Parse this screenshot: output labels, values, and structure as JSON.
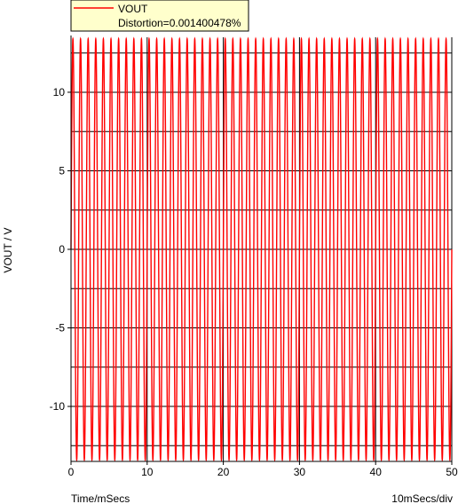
{
  "chart_data": {
    "type": "line",
    "ylabel": "VOUT / V",
    "xlabel": "Time/mSecs",
    "x_scale_note": "10mSecs/div",
    "xlim": [
      0,
      50
    ],
    "ylim": [
      -13.5,
      13.5
    ],
    "x_ticks": [
      0,
      10,
      20,
      30,
      40,
      50
    ],
    "y_ticks": [
      -10,
      -5,
      0,
      5,
      10
    ],
    "x_gridlines": [
      0,
      10,
      20,
      30,
      40,
      50
    ],
    "y_gridlines": [
      -12.5,
      -10,
      -7.5,
      -5,
      -2.5,
      0,
      2.5,
      5,
      7.5,
      10,
      12.5
    ],
    "grid": true,
    "legend": {
      "placement": "top-left",
      "entries": [
        {
          "name": "VOUT",
          "note": "Distortion=0.001400478%"
        }
      ]
    },
    "series": [
      {
        "name": "VOUT",
        "color": "#ff0000",
        "waveform": "sine",
        "amplitude": 13.4,
        "frequency_kHz": 1,
        "x_start": 0,
        "x_end": 50
      }
    ]
  },
  "colors": {
    "background": "#ffffff",
    "grid": "#000000",
    "axis": "#000000",
    "legend_background": "#ffffcc"
  }
}
